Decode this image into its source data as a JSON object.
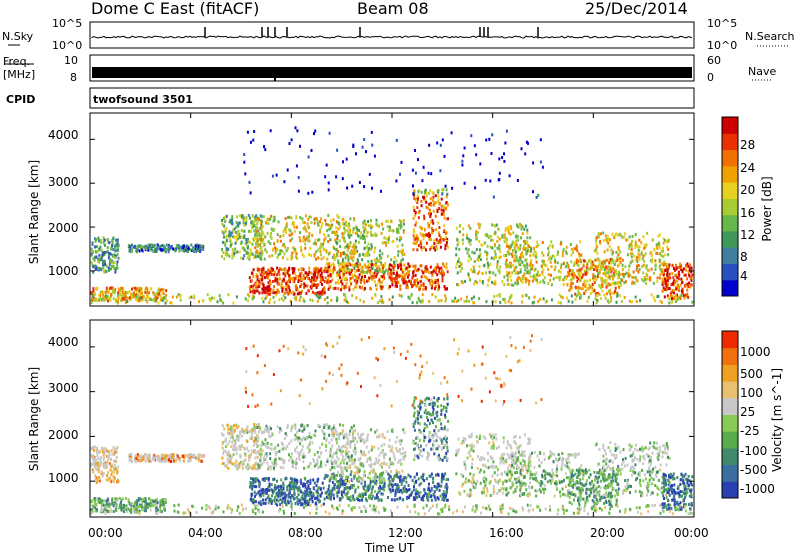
{
  "header": {
    "station": "Dome C East (fitACF)",
    "beam": "Beam 08",
    "date": "25/Dec/2014"
  },
  "noise_panel": {
    "left_label": "N.Sky",
    "left_ticks": [
      "10^5",
      "10^0"
    ],
    "right_ticks": [
      "10^5",
      "10^0"
    ],
    "right_label": "N.Search"
  },
  "freq_panel": {
    "left_label_1": "Freq.",
    "left_label_2": "[MHz]",
    "left_ticks": [
      "10",
      "8"
    ],
    "right_ticks": [
      "60",
      "0"
    ],
    "right_label": "Nave"
  },
  "cpid_panel": {
    "label": "CPID",
    "program": "twofsound 3501"
  },
  "chart_data": [
    {
      "type": "heatmap",
      "name": "power",
      "ylabel": "Slant Range [km]",
      "y_ticks": [
        "4000",
        "3000",
        "2000",
        "1000"
      ],
      "y_tick_values": [
        4000,
        3000,
        2000,
        1000
      ],
      "ylim": [
        200,
        4600
      ],
      "xlim": [
        0,
        24
      ],
      "colorbar": {
        "label": "Power [dB]",
        "ticks": [
          "28",
          "24",
          "20",
          "16",
          "12",
          "8",
          "4"
        ],
        "colors": [
          "#0000cc",
          "#2a4fbf",
          "#3f7fa0",
          "#3f9a5a",
          "#66b84a",
          "#a8cc33",
          "#e8d020",
          "#f0a000",
          "#f07000",
          "#e83000",
          "#cc0000"
        ]
      }
    },
    {
      "type": "heatmap",
      "name": "velocity",
      "ylabel": "Slant Range [km]",
      "y_ticks": [
        "4000",
        "3000",
        "2000",
        "1000"
      ],
      "y_tick_values": [
        4000,
        3000,
        2000,
        1000
      ],
      "ylim": [
        200,
        4600
      ],
      "xlim": [
        0,
        24
      ],
      "colorbar": {
        "label": "Velocity [m s^-1]",
        "ticks": [
          "1000",
          "500",
          "100",
          "25",
          "-25",
          "-100",
          "-500",
          "-1000"
        ],
        "colors": [
          "#2a3fb0",
          "#3a6fa0",
          "#3f8a6a",
          "#5aab4a",
          "#88cc55",
          "#c8c8c8",
          "#e8c070",
          "#f0a020",
          "#f07010",
          "#ee2a00"
        ]
      }
    }
  ],
  "x_axis": {
    "label": "Time UT",
    "ticks": [
      "00:00",
      "04:00",
      "08:00",
      "12:00",
      "16:00",
      "20:00",
      "00:00"
    ],
    "tick_hours": [
      0,
      4,
      8,
      12,
      16,
      20,
      24
    ]
  }
}
